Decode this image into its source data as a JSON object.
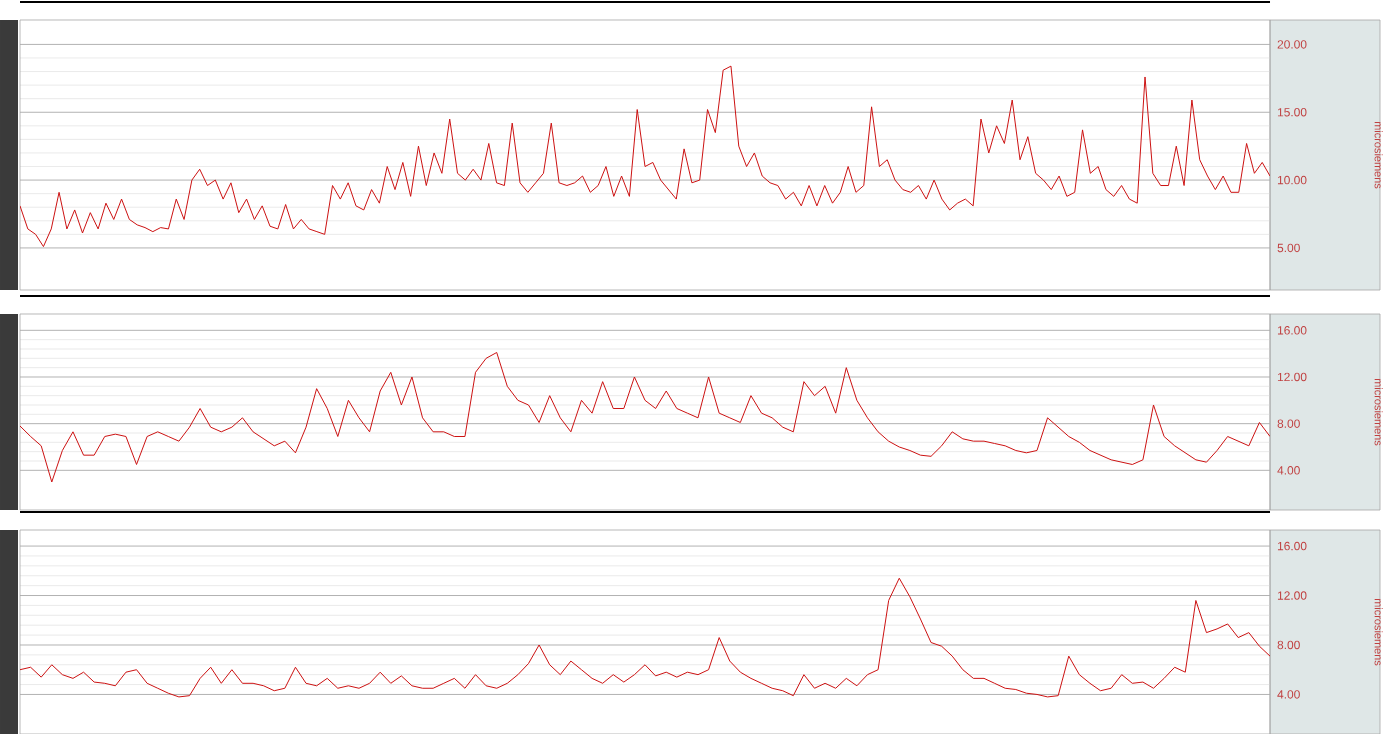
{
  "chart_data": [
    {
      "type": "line",
      "ylabel": "microsiemens",
      "ylim": [
        1.9,
        21.8
      ],
      "grid": "y",
      "yticks": [
        {
          "value": 5,
          "label": "5.00"
        },
        {
          "value": 10,
          "label": "10.00"
        },
        {
          "value": 15,
          "label": "15.00"
        },
        {
          "value": 20,
          "label": "20.00"
        }
      ],
      "categories": [
        null,
        null,
        null,
        null,
        null,
        null,
        null,
        null,
        null,
        null,
        null,
        null,
        null,
        null,
        null,
        null,
        null,
        null,
        null,
        null,
        null,
        null,
        null,
        null,
        null,
        null,
        null,
        null,
        null,
        null,
        null,
        null,
        null,
        null,
        null,
        null,
        null,
        null,
        null,
        null,
        null,
        null,
        null,
        null,
        null,
        null,
        null,
        null,
        null,
        null,
        null,
        null,
        null,
        null,
        null,
        null,
        null,
        null,
        null,
        null,
        null,
        null,
        null,
        null,
        null,
        null,
        null,
        null,
        null,
        null,
        null,
        null,
        null,
        null,
        null,
        null,
        null,
        null,
        null,
        null,
        null,
        null,
        null,
        null,
        null,
        null,
        null,
        null,
        null,
        null,
        null,
        null,
        null,
        null,
        null,
        null,
        null,
        null,
        null,
        null,
        null,
        null,
        null,
        null,
        null,
        null,
        null,
        null,
        null,
        null,
        null,
        null,
        null,
        null,
        null,
        null,
        null,
        null,
        null,
        null,
        null,
        null,
        null,
        null,
        null,
        null,
        null,
        null,
        null,
        null,
        null,
        null,
        null,
        null,
        null,
        null,
        null,
        null,
        null,
        null,
        null,
        null,
        null,
        null,
        null,
        null,
        null,
        null,
        null,
        null,
        null,
        null,
        null,
        null,
        null,
        null,
        null,
        null,
        null,
        null,
        null
      ],
      "series": [
        {
          "color": "#cc1111",
          "values": [
            8.1,
            6.4,
            6.0,
            5.1,
            6.4,
            9.1,
            6.4,
            7.8,
            6.1,
            7.6,
            6.4,
            8.3,
            7.1,
            8.6,
            7.1,
            6.7,
            6.5,
            6.2,
            6.5,
            6.4,
            8.6,
            7.1,
            10.0,
            10.8,
            9.6,
            10.0,
            8.6,
            9.8,
            7.6,
            8.6,
            7.1,
            8.1,
            6.6,
            6.4,
            8.2,
            6.4,
            7.1,
            6.4,
            6.2,
            6.0,
            9.6,
            8.6,
            9.8,
            8.1,
            7.8,
            9.3,
            8.3,
            11.0,
            9.3,
            11.3,
            8.8,
            12.5,
            9.6,
            12.0,
            10.5,
            14.5,
            10.5,
            10.0,
            10.8,
            10.0,
            12.7,
            9.8,
            9.6,
            14.2,
            9.8,
            9.1,
            9.8,
            10.5,
            14.2,
            9.8,
            9.6,
            9.8,
            10.3,
            9.1,
            9.6,
            11.0,
            8.8,
            10.3,
            8.8,
            15.2,
            11.0,
            11.3,
            10.0,
            9.3,
            8.6,
            12.3,
            9.8,
            10.0,
            15.2,
            13.5,
            18.1,
            18.4,
            12.5,
            11.0,
            12.0,
            10.3,
            9.8,
            9.6,
            8.6,
            9.1,
            8.1,
            9.6,
            8.1,
            9.6,
            8.3,
            9.1,
            11.0,
            9.1,
            9.6,
            15.4,
            11.0,
            11.5,
            10.0,
            9.3,
            9.1,
            9.6,
            8.6,
            10.0,
            8.6,
            7.8,
            8.3,
            8.6,
            8.1,
            14.5,
            12.0,
            14.0,
            12.7,
            15.9,
            11.5,
            13.2,
            10.5,
            10.0,
            9.3,
            10.3,
            8.8,
            9.1,
            13.7,
            10.5,
            11.0,
            9.3,
            8.8,
            9.6,
            8.6,
            8.3,
            17.6,
            10.5,
            9.6,
            9.6,
            12.5,
            9.6,
            15.9,
            11.5,
            10.3,
            9.3,
            10.3,
            9.1,
            9.1,
            12.7,
            10.5,
            11.3,
            10.3
          ]
        }
      ]
    },
    {
      "type": "line",
      "ylabel": "microsiemens",
      "ylim": [
        0.6,
        17.4
      ],
      "grid": "y",
      "yticks": [
        {
          "value": 4,
          "label": "4.00"
        },
        {
          "value": 8,
          "label": "8.00"
        },
        {
          "value": 12,
          "label": "12.00"
        },
        {
          "value": 16,
          "label": "16.00"
        }
      ],
      "categories": [
        null,
        null,
        null,
        null,
        null,
        null,
        null,
        null,
        null,
        null,
        null,
        null,
        null,
        null,
        null,
        null,
        null,
        null,
        null,
        null,
        null,
        null,
        null,
        null,
        null,
        null,
        null,
        null,
        null,
        null,
        null,
        null,
        null,
        null,
        null,
        null,
        null,
        null,
        null,
        null,
        null,
        null,
        null,
        null,
        null,
        null,
        null,
        null,
        null,
        null,
        null,
        null,
        null,
        null,
        null,
        null,
        null,
        null,
        null,
        null,
        null,
        null,
        null,
        null,
        null,
        null,
        null,
        null,
        null,
        null,
        null,
        null,
        null,
        null,
        null,
        null,
        null,
        null,
        null,
        null,
        null,
        null,
        null,
        null,
        null,
        null,
        null,
        null,
        null,
        null,
        null,
        null,
        null,
        null,
        null,
        null,
        null,
        null,
        null,
        null,
        null,
        null,
        null,
        null,
        null,
        null,
        null,
        null,
        null,
        null,
        null,
        null,
        null,
        null,
        null,
        null,
        null,
        null,
        null
      ],
      "series": [
        {
          "color": "#cc1111",
          "values": [
            7.8,
            6.9,
            6.1,
            3.0,
            5.7,
            7.3,
            5.3,
            5.3,
            6.9,
            7.1,
            6.9,
            4.5,
            6.9,
            7.3,
            6.9,
            6.5,
            7.7,
            9.3,
            7.7,
            7.3,
            7.7,
            8.5,
            7.3,
            6.7,
            6.1,
            6.5,
            5.5,
            7.7,
            11.0,
            9.3,
            6.9,
            10.0,
            8.5,
            7.3,
            10.8,
            12.4,
            9.6,
            12.0,
            8.5,
            7.3,
            7.3,
            6.9,
            6.9,
            12.4,
            13.6,
            14.1,
            11.2,
            10.0,
            9.6,
            8.1,
            10.4,
            8.5,
            7.3,
            10.0,
            8.9,
            11.6,
            9.3,
            9.3,
            12.0,
            10.0,
            9.3,
            10.8,
            9.3,
            8.9,
            8.5,
            12.0,
            8.9,
            8.5,
            8.1,
            10.4,
            8.9,
            8.5,
            7.7,
            7.3,
            11.6,
            10.4,
            11.2,
            8.9,
            12.8,
            10.0,
            8.5,
            7.3,
            6.5,
            6.0,
            5.7,
            5.3,
            5.2,
            6.1,
            7.3,
            6.7,
            6.5,
            6.5,
            6.3,
            6.1,
            5.7,
            5.5,
            5.7,
            8.5,
            7.7,
            6.9,
            6.4,
            5.7,
            5.3,
            4.9,
            4.7,
            4.5,
            4.9,
            9.6,
            6.9,
            6.1,
            5.5,
            4.9,
            4.7,
            5.7,
            6.9,
            6.5,
            6.1,
            8.1,
            6.9
          ]
        }
      ]
    },
    {
      "type": "line",
      "ylabel": "microsiemens",
      "ylim": [
        0.8,
        17.3
      ],
      "grid": "y",
      "yticks": [
        {
          "value": 4,
          "label": "4.00"
        },
        {
          "value": 8,
          "label": "8.00"
        },
        {
          "value": 12,
          "label": "12.00"
        },
        {
          "value": 16,
          "label": "16.00"
        }
      ],
      "categories": [
        null,
        null,
        null,
        null,
        null,
        null,
        null,
        null,
        null,
        null,
        null,
        null,
        null,
        null,
        null,
        null,
        null,
        null,
        null,
        null,
        null,
        null,
        null,
        null,
        null,
        null,
        null,
        null,
        null,
        null,
        null,
        null,
        null,
        null,
        null,
        null,
        null,
        null,
        null,
        null,
        null,
        null,
        null,
        null,
        null,
        null,
        null,
        null,
        null,
        null,
        null,
        null,
        null,
        null,
        null,
        null,
        null,
        null,
        null,
        null,
        null,
        null,
        null,
        null,
        null,
        null,
        null,
        null,
        null,
        null,
        null,
        null,
        null,
        null,
        null,
        null,
        null,
        null,
        null,
        null,
        null,
        null,
        null,
        null,
        null,
        null,
        null,
        null,
        null,
        null,
        null,
        null,
        null,
        null,
        null,
        null,
        null,
        null,
        null,
        null,
        null,
        null,
        null,
        null,
        null,
        null,
        null,
        null,
        null,
        null,
        null,
        null,
        null,
        null,
        null,
        null,
        null,
        null,
        null
      ],
      "series": [
        {
          "color": "#cc1111",
          "values": [
            6.0,
            6.2,
            5.4,
            6.4,
            5.6,
            5.3,
            5.8,
            5.0,
            4.9,
            4.7,
            5.8,
            6.0,
            4.9,
            4.5,
            4.1,
            3.8,
            3.9,
            5.3,
            6.2,
            4.9,
            6.0,
            4.9,
            4.9,
            4.7,
            4.3,
            4.5,
            6.2,
            4.9,
            4.7,
            5.3,
            4.5,
            4.7,
            4.5,
            4.9,
            5.8,
            4.9,
            5.5,
            4.7,
            4.5,
            4.5,
            4.9,
            5.3,
            4.5,
            5.6,
            4.7,
            4.5,
            4.9,
            5.6,
            6.5,
            8.0,
            6.4,
            5.6,
            6.7,
            6.0,
            5.3,
            4.9,
            5.6,
            5.0,
            5.6,
            6.4,
            5.5,
            5.8,
            5.4,
            5.8,
            5.6,
            6.0,
            8.6,
            6.7,
            5.8,
            5.3,
            4.9,
            4.5,
            4.3,
            3.9,
            5.6,
            4.5,
            4.9,
            4.5,
            5.3,
            4.7,
            5.6,
            6.0,
            11.6,
            13.4,
            11.9,
            10.1,
            8.2,
            7.9,
            7.1,
            6.0,
            5.3,
            5.3,
            4.9,
            4.5,
            4.4,
            4.1,
            4.0,
            3.8,
            3.9,
            7.1,
            5.6,
            4.9,
            4.3,
            4.5,
            5.6,
            4.9,
            5.0,
            4.5,
            5.3,
            6.2,
            5.8,
            11.6,
            9.0,
            9.3,
            9.7,
            8.6,
            9.0,
            7.9,
            7.1
          ]
        }
      ]
    }
  ]
}
